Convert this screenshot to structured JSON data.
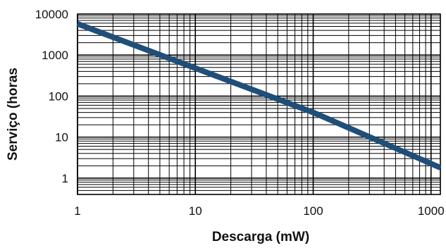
{
  "chart_data": {
    "type": "line",
    "xlabel": "Descarga (mW)",
    "ylabel": "Serviço (horas",
    "x_scale": "log",
    "y_scale": "log",
    "xlim": [
      1,
      1200
    ],
    "ylim": [
      0.4,
      10000
    ],
    "x_ticks": [
      {
        "value": 1,
        "label": "1"
      },
      {
        "value": 10,
        "label": "10"
      },
      {
        "value": 100,
        "label": "100"
      },
      {
        "value": 1000,
        "label": "1000"
      }
    ],
    "y_ticks": [
      {
        "value": 1,
        "label": "1"
      },
      {
        "value": 10,
        "label": "10"
      },
      {
        "value": 100,
        "label": "100"
      },
      {
        "value": 1000,
        "label": "1000"
      },
      {
        "value": 10000,
        "label": "10000"
      }
    ],
    "grid": true,
    "legend": "none",
    "series": [
      {
        "x": [
          1,
          10,
          100,
          1200
        ],
        "y": [
          5800,
          480,
          40,
          1.8
        ]
      }
    ],
    "colors": {
      "line": "#1f4e79",
      "grid": "#000000",
      "text": "#111111",
      "background": "#ffffff"
    }
  }
}
